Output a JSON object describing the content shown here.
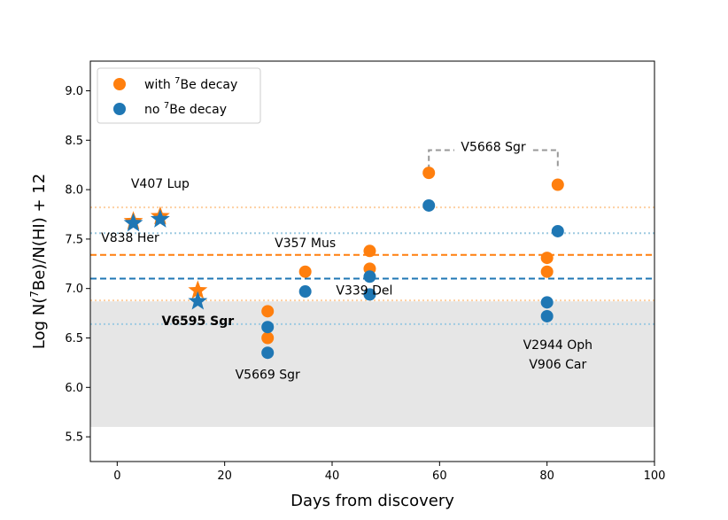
{
  "chart_data": {
    "type": "scatter",
    "xlabel": "Days from discovery",
    "ylabel_prefix": "Log N(",
    "ylabel_sup": "7",
    "ylabel_suffix": "Be)/N(HI) + 12",
    "xlim": [
      -5,
      100
    ],
    "ylim": [
      5.25,
      9.3
    ],
    "xticks": [
      0,
      20,
      40,
      60,
      80,
      100
    ],
    "yticks": [
      5.5,
      6.0,
      6.5,
      7.0,
      7.5,
      8.0,
      8.5,
      9.0
    ],
    "ytick_labels": [
      "5.5",
      "6.0",
      "6.5",
      "7.0",
      "7.5",
      "8.0",
      "8.5",
      "9.0"
    ],
    "colors": {
      "with": "#ff7f0e",
      "no": "#1f77b4",
      "with_light": "#fdd0a2",
      "no_light": "#9ecae1",
      "shade": "#e6e6e6",
      "bracket": "#999999"
    },
    "legend": {
      "placement": "upper-left",
      "entries": [
        {
          "key": "with",
          "prefix": "with ",
          "sup": "7",
          "suffix": "Be decay"
        },
        {
          "key": "no",
          "prefix": "no ",
          "sup": "7",
          "suffix": "Be decay"
        }
      ]
    },
    "shaded_band": [
      5.6,
      6.87
    ],
    "hlines": [
      {
        "series": "with",
        "style": "dashed",
        "y": 7.34
      },
      {
        "series": "no",
        "style": "dashed",
        "y": 7.1
      },
      {
        "series": "with",
        "style": "dotted",
        "y": 7.82
      },
      {
        "series": "with",
        "style": "dotted",
        "y": 6.88
      },
      {
        "series": "no",
        "style": "dotted",
        "y": 7.56
      },
      {
        "series": "no",
        "style": "dotted",
        "y": 6.64
      }
    ],
    "series": [
      {
        "key": "with",
        "points": [
          {
            "x": 3,
            "y": 7.68,
            "marker": "star"
          },
          {
            "x": 8,
            "y": 7.73,
            "marker": "star"
          },
          {
            "x": 15,
            "y": 6.98,
            "marker": "star"
          },
          {
            "x": 28,
            "y": 6.77,
            "marker": "circle"
          },
          {
            "x": 28,
            "y": 6.5,
            "marker": "circle"
          },
          {
            "x": 35,
            "y": 7.17,
            "marker": "circle"
          },
          {
            "x": 47,
            "y": 7.38,
            "marker": "circle"
          },
          {
            "x": 47,
            "y": 7.2,
            "marker": "circle"
          },
          {
            "x": 58,
            "y": 8.17,
            "marker": "circle"
          },
          {
            "x": 80,
            "y": 7.31,
            "marker": "circle"
          },
          {
            "x": 80,
            "y": 7.17,
            "marker": "circle"
          },
          {
            "x": 82,
            "y": 8.05,
            "marker": "circle"
          }
        ]
      },
      {
        "key": "no",
        "points": [
          {
            "x": 3,
            "y": 7.66,
            "marker": "star"
          },
          {
            "x": 8,
            "y": 7.7,
            "marker": "star"
          },
          {
            "x": 15,
            "y": 6.87,
            "marker": "star"
          },
          {
            "x": 28,
            "y": 6.61,
            "marker": "circle"
          },
          {
            "x": 28,
            "y": 6.35,
            "marker": "circle"
          },
          {
            "x": 35,
            "y": 6.97,
            "marker": "circle"
          },
          {
            "x": 47,
            "y": 7.12,
            "marker": "circle"
          },
          {
            "x": 47,
            "y": 6.94,
            "marker": "circle"
          },
          {
            "x": 58,
            "y": 7.84,
            "marker": "circle"
          },
          {
            "x": 80,
            "y": 6.86,
            "marker": "circle"
          },
          {
            "x": 80,
            "y": 6.72,
            "marker": "circle"
          },
          {
            "x": 82,
            "y": 7.58,
            "marker": "circle"
          }
        ]
      }
    ],
    "bracket": {
      "x1": 58,
      "x2": 82,
      "y_top": 8.4,
      "y_bottom": 8.2
    },
    "annotations": [
      {
        "text": "V407 Lup",
        "x": 8,
        "y": 8.02,
        "anchor": "middle",
        "bold": false
      },
      {
        "text": "V838 Her",
        "x": -3,
        "y": 7.47,
        "anchor": "start",
        "bold": false
      },
      {
        "text": "V357 Mus",
        "x": 35,
        "y": 7.42,
        "anchor": "middle",
        "bold": false
      },
      {
        "text": "V6595 Sgr",
        "x": 15,
        "y": 6.63,
        "anchor": "middle",
        "bold": true
      },
      {
        "text": "V339 Del",
        "x": 46,
        "y": 6.94,
        "anchor": "middle",
        "bold": false
      },
      {
        "text": "V5669 Sgr",
        "x": 28,
        "y": 6.09,
        "anchor": "middle",
        "bold": false
      },
      {
        "text": "V5668 Sgr",
        "x": 70,
        "y": 8.39,
        "anchor": "middle",
        "bold": false
      },
      {
        "text": "V2944 Oph",
        "x": 82,
        "y": 6.39,
        "anchor": "middle",
        "bold": false
      },
      {
        "text": "V906 Car",
        "x": 82,
        "y": 6.19,
        "anchor": "middle",
        "bold": false
      }
    ]
  }
}
